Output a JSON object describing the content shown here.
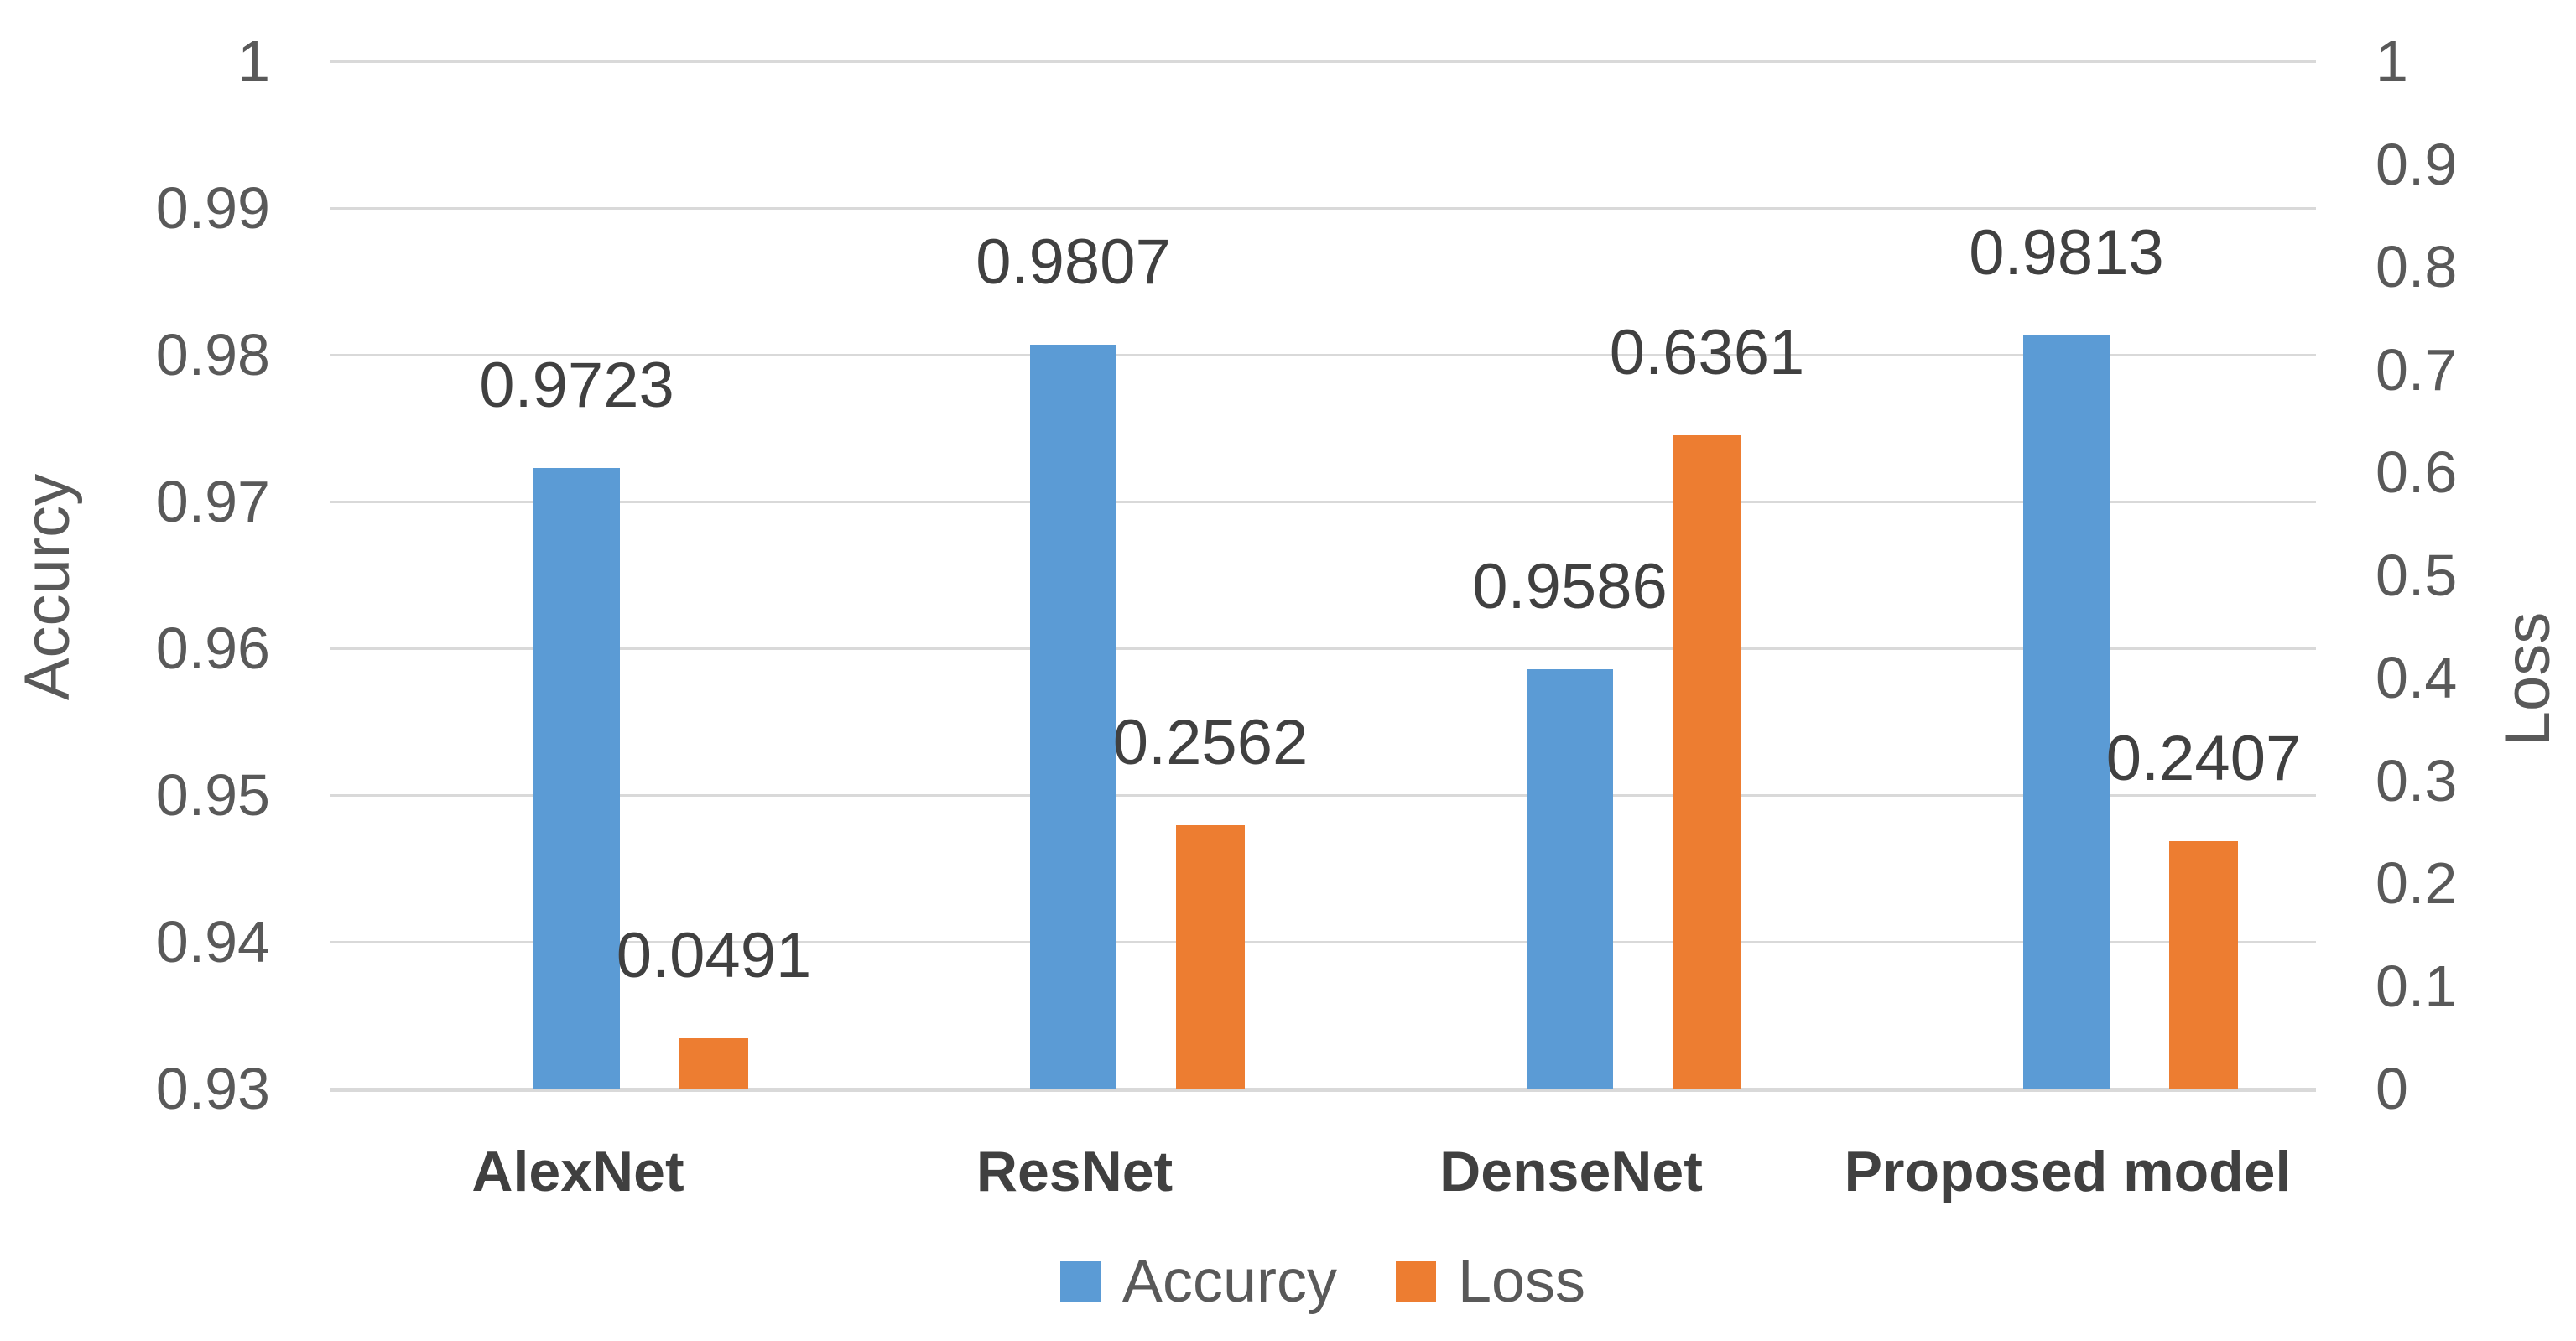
{
  "chart_data": {
    "type": "bar",
    "title": "",
    "categories": [
      "AlexNet",
      "ResNet",
      "DenseNet",
      "Proposed model"
    ],
    "series": [
      {
        "name": "Accurcy",
        "axis": "left",
        "color": "#5B9BD5",
        "values": [
          0.9723,
          0.9807,
          0.9586,
          0.9813
        ],
        "labels": [
          "0.9723",
          "0.9807",
          "0.9586",
          "0.9813"
        ]
      },
      {
        "name": "Loss",
        "axis": "right",
        "color": "#ED7D31",
        "values": [
          0.0491,
          0.2562,
          0.6361,
          0.2407
        ],
        "labels": [
          "0.0491",
          "0.2562",
          "0.6361",
          "0.2407"
        ]
      }
    ],
    "left_axis": {
      "title": "Accurcy",
      "min": 0.93,
      "max": 1.0,
      "step": 0.01,
      "ticks": [
        "1",
        "0.99",
        "0.98",
        "0.97",
        "0.96",
        "0.95",
        "0.94",
        "0.93"
      ]
    },
    "right_axis": {
      "title": "Loss",
      "min": 0,
      "max": 1,
      "step": 0.1,
      "ticks": [
        "1",
        "0.9",
        "0.8",
        "0.7",
        "0.6",
        "0.5",
        "0.4",
        "0.3",
        "0.2",
        "0.1",
        "0"
      ]
    },
    "legend": [
      {
        "label": "Accurcy",
        "color": "#5B9BD5"
      },
      {
        "label": "Loss",
        "color": "#ED7D31"
      }
    ],
    "grid": true,
    "legend_position": "bottom",
    "colors": {
      "gridline": "#D9D9D9",
      "tick_text": "#595959",
      "data_label_text": "#404040",
      "category_text": "#404040",
      "background": "#FFFFFF"
    }
  }
}
